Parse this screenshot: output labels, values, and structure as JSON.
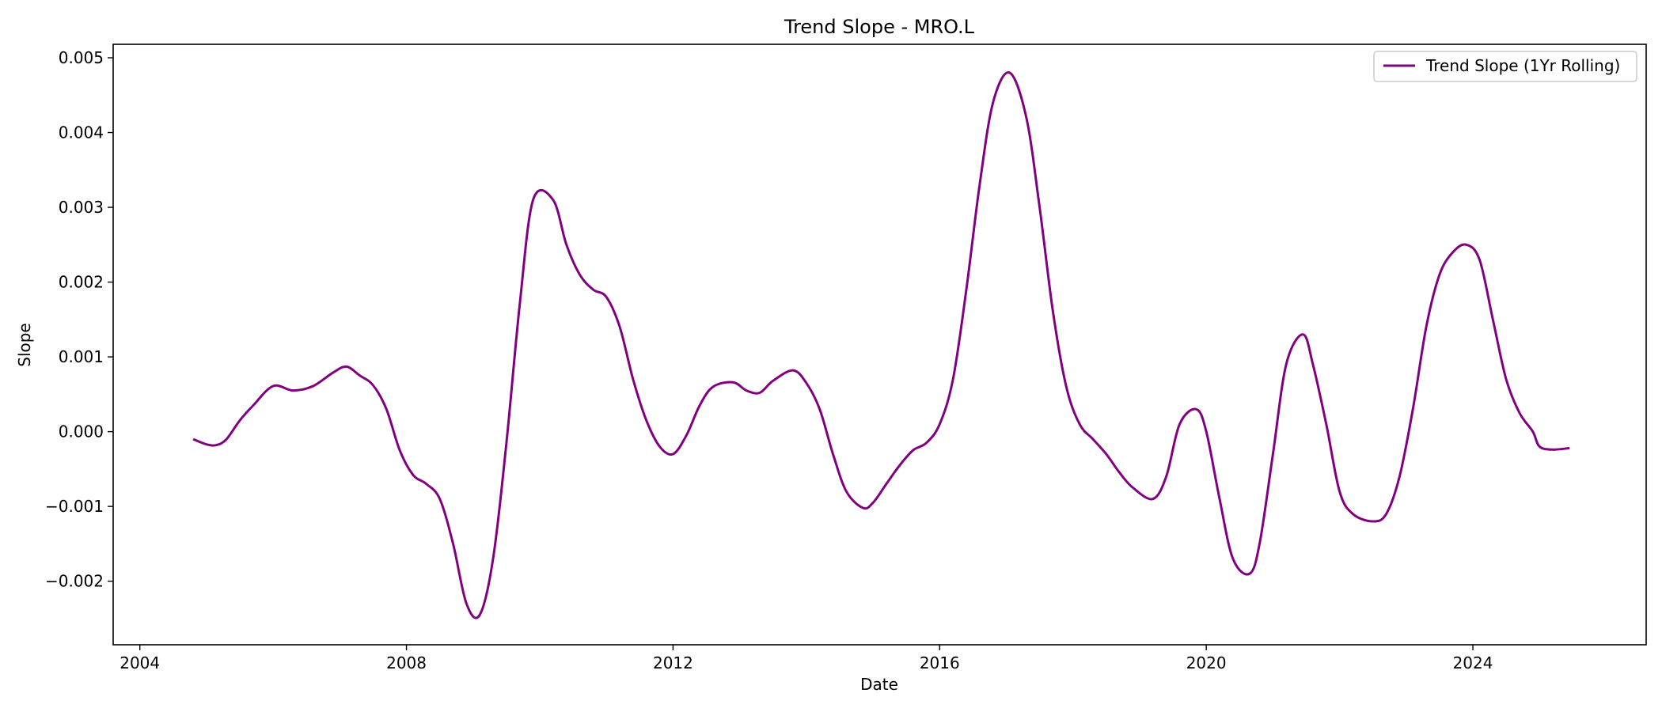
{
  "chart_data": {
    "type": "line",
    "title": "Trend Slope - MRO.L",
    "xlabel": "Date",
    "ylabel": "Slope",
    "xlim": [
      2003.6,
      2026.6
    ],
    "ylim": [
      -0.00285,
      0.00518
    ],
    "x_ticks": [
      2004,
      2008,
      2012,
      2016,
      2020,
      2024
    ],
    "x_tick_labels": [
      "2004",
      "2008",
      "2012",
      "2016",
      "2020",
      "2024"
    ],
    "y_ticks": [
      -0.002,
      -0.001,
      0.0,
      0.001,
      0.002,
      0.003,
      0.004,
      0.005
    ],
    "y_tick_labels": [
      "−0.002",
      "−0.001",
      "0.000",
      "0.001",
      "0.002",
      "0.003",
      "0.004",
      "0.005"
    ],
    "grid": false,
    "legend": {
      "position": "top-right",
      "entries": [
        "Trend Slope (1Yr Rolling)"
      ]
    },
    "colors": {
      "series": "#800080"
    },
    "series": [
      {
        "name": "Trend Slope (1Yr Rolling)",
        "x": [
          2004.8,
          2005.0,
          2005.15,
          2005.3,
          2005.5,
          2005.7,
          2006.0,
          2006.3,
          2006.6,
          2006.9,
          2007.1,
          2007.3,
          2007.5,
          2007.7,
          2007.9,
          2008.1,
          2008.3,
          2008.5,
          2008.7,
          2008.9,
          2009.1,
          2009.3,
          2009.5,
          2009.7,
          2009.9,
          2010.2,
          2010.4,
          2010.6,
          2010.8,
          2011.0,
          2011.2,
          2011.4,
          2011.6,
          2011.8,
          2012.0,
          2012.2,
          2012.4,
          2012.6,
          2012.9,
          2013.1,
          2013.3,
          2013.5,
          2013.8,
          2014.0,
          2014.2,
          2014.4,
          2014.6,
          2014.85,
          2015.0,
          2015.2,
          2015.4,
          2015.6,
          2015.8,
          2016.0,
          2016.2,
          2016.4,
          2016.6,
          2016.8,
          2017.05,
          2017.3,
          2017.5,
          2017.7,
          2017.9,
          2018.1,
          2018.3,
          2018.5,
          2018.7,
          2018.9,
          2019.2,
          2019.4,
          2019.6,
          2019.85,
          2020.0,
          2020.2,
          2020.4,
          2020.65,
          2020.8,
          2021.0,
          2021.2,
          2021.45,
          2021.6,
          2021.8,
          2022.0,
          2022.2,
          2022.5,
          2022.7,
          2022.9,
          2023.1,
          2023.3,
          2023.5,
          2023.7,
          2023.9,
          2024.1,
          2024.3,
          2024.5,
          2024.7,
          2024.9,
          2025.0,
          2025.2,
          2025.45
        ],
        "values": [
          -0.0001,
          -0.00017,
          -0.00018,
          -0.0001,
          0.00015,
          0.00035,
          0.00061,
          0.00055,
          0.00061,
          0.00079,
          0.00087,
          0.00075,
          0.00062,
          0.0003,
          -0.00025,
          -0.00058,
          -0.0007,
          -0.0009,
          -0.0015,
          -0.0023,
          -0.00245,
          -0.0017,
          -0.00015,
          0.0017,
          0.0031,
          0.0031,
          0.0025,
          0.0021,
          0.0019,
          0.0018,
          0.0014,
          0.0007,
          0.00015,
          -0.0002,
          -0.0003,
          -5e-05,
          0.00035,
          0.0006,
          0.00066,
          0.00055,
          0.00052,
          0.00068,
          0.00082,
          0.00065,
          0.0003,
          -0.0003,
          -0.0008,
          -0.00102,
          -0.00095,
          -0.0007,
          -0.00045,
          -0.00025,
          -0.00015,
          0.0001,
          0.0007,
          0.0019,
          0.0033,
          0.0044,
          0.0048,
          0.0042,
          0.003,
          0.0016,
          0.0006,
          0.0001,
          -0.0001,
          -0.0003,
          -0.00055,
          -0.00075,
          -0.0009,
          -0.0006,
          0.0001,
          0.0003,
          0.0,
          -0.0009,
          -0.0017,
          -0.0019,
          -0.0015,
          -0.0003,
          0.0009,
          0.0013,
          0.0009,
          0.0001,
          -0.0008,
          -0.0011,
          -0.0012,
          -0.0011,
          -0.0006,
          0.0003,
          0.0014,
          0.0021,
          0.0024,
          0.0025,
          0.0023,
          0.0015,
          0.0007,
          0.00025,
          0.0,
          -0.0002,
          -0.00024,
          -0.00022
        ]
      }
    ]
  }
}
